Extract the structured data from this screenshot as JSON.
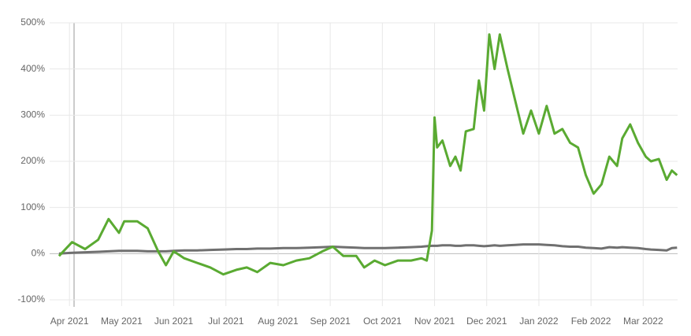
{
  "chart_data": {
    "type": "line",
    "x": [
      0.8,
      1.05,
      1.3,
      1.55,
      1.75,
      1.95,
      2.05,
      2.3,
      2.5,
      2.7,
      2.85,
      3.0,
      3.2,
      3.45,
      3.7,
      3.95,
      4.2,
      4.4,
      4.6,
      4.85,
      5.1,
      5.35,
      5.6,
      5.85,
      6.05,
      6.25,
      6.5,
      6.65,
      6.85,
      7.05,
      7.3,
      7.55,
      7.75,
      7.85,
      7.95,
      8.0,
      8.05,
      8.15,
      8.3,
      8.4,
      8.5,
      8.6,
      8.75,
      8.85,
      8.95,
      9.05,
      9.15,
      9.25,
      9.4,
      9.55,
      9.7,
      9.85,
      10.0,
      10.15,
      10.3,
      10.45,
      10.6,
      10.75,
      10.9,
      11.05,
      11.2,
      11.35,
      11.5,
      11.6,
      11.75,
      11.9,
      12.05,
      12.15,
      12.3,
      12.45,
      12.55,
      12.65
    ],
    "series": [
      {
        "color": "#5aaa32",
        "values": [
          -5,
          25,
          10,
          30,
          75,
          45,
          70,
          70,
          55,
          5,
          -25,
          5,
          -10,
          -20,
          -30,
          -45,
          -35,
          -30,
          -40,
          -20,
          -25,
          -15,
          -10,
          5,
          15,
          -5,
          -5,
          -30,
          -15,
          -25,
          -15,
          -15,
          -10,
          -15,
          50,
          295,
          230,
          245,
          190,
          210,
          180,
          265,
          270,
          375,
          310,
          475,
          400,
          475,
          400,
          330,
          260,
          310,
          260,
          320,
          260,
          270,
          240,
          230,
          170,
          130,
          150,
          210,
          190,
          250,
          280,
          240,
          210,
          200,
          205,
          160,
          180,
          170
        ]
      },
      {
        "color": "#707070",
        "values": [
          0,
          2,
          3,
          4,
          5,
          6,
          6,
          6,
          5,
          5,
          5,
          6,
          7,
          7,
          8,
          9,
          10,
          10,
          11,
          11,
          12,
          12,
          13,
          14,
          15,
          14,
          13,
          12,
          12,
          12,
          13,
          14,
          15,
          16,
          17,
          17,
          17,
          18,
          18,
          17,
          17,
          18,
          18,
          17,
          16,
          17,
          18,
          17,
          18,
          19,
          20,
          20,
          20,
          19,
          18,
          16,
          15,
          15,
          13,
          12,
          11,
          14,
          13,
          14,
          13,
          12,
          10,
          9,
          8,
          7,
          12,
          13
        ]
      }
    ],
    "xlim": [
      0.62,
      12.66
    ],
    "xticks": [
      {
        "value": 1,
        "label": "Apr 2021"
      },
      {
        "value": 2,
        "label": "May 2021"
      },
      {
        "value": 3,
        "label": "Jun 2021"
      },
      {
        "value": 4,
        "label": "Jul 2021"
      },
      {
        "value": 5,
        "label": "Aug 2021"
      },
      {
        "value": 6,
        "label": "Sep 2021"
      },
      {
        "value": 7,
        "label": "Oct 2021"
      },
      {
        "value": 8,
        "label": "Nov 2021"
      },
      {
        "value": 9,
        "label": "Dec 2021"
      },
      {
        "value": 10,
        "label": "Jan 2022"
      },
      {
        "value": 11,
        "label": "Feb 2022"
      },
      {
        "value": 12,
        "label": "Mar 2022"
      }
    ],
    "ylim": [
      -100,
      500
    ],
    "yticks": [
      {
        "value": -100,
        "label": "-100%"
      },
      {
        "value": 0,
        "label": "0%"
      },
      {
        "value": 100,
        "label": "100%"
      },
      {
        "value": 200,
        "label": "200%"
      },
      {
        "value": 300,
        "label": "300%"
      },
      {
        "value": 400,
        "label": "400%"
      },
      {
        "value": 500,
        "label": "500%"
      }
    ],
    "grid": true
  }
}
